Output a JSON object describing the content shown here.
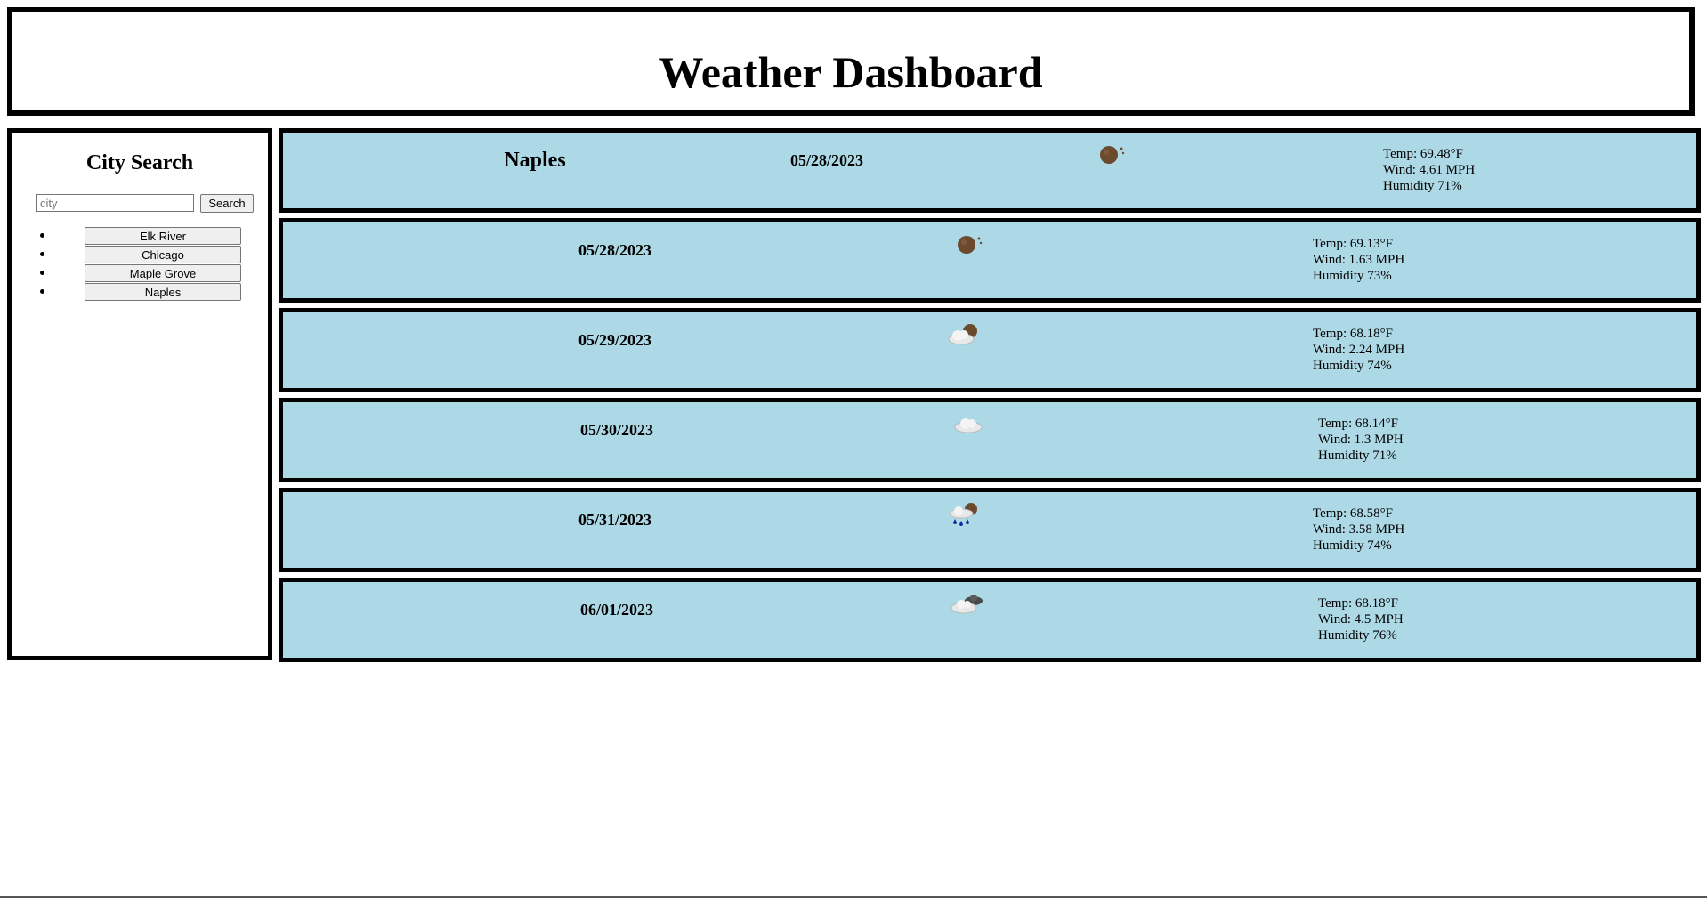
{
  "header": {
    "title": "Weather Dashboard"
  },
  "sidebar": {
    "title": "City Search",
    "search_placeholder": "city",
    "search_button": "Search",
    "history": [
      {
        "label": "Elk River"
      },
      {
        "label": "Chicago"
      },
      {
        "label": "Maple Grove"
      },
      {
        "label": "Naples"
      }
    ]
  },
  "current": {
    "city": "Naples",
    "date": "05/28/2023",
    "icon": "night-clear-icon",
    "temp": "Temp: 69.48°F",
    "wind": "Wind: 4.61 MPH",
    "humidity": "Humidity 71%"
  },
  "forecast": [
    {
      "date": "05/28/2023",
      "icon": "night-clear-icon",
      "temp": "Temp: 69.13°F",
      "wind": "Wind: 1.63 MPH",
      "humidity": "Humidity 73%"
    },
    {
      "date": "05/29/2023",
      "icon": "partly-cloudy-icon",
      "temp": "Temp: 68.18°F",
      "wind": "Wind: 2.24 MPH",
      "humidity": "Humidity 74%"
    },
    {
      "date": "05/30/2023",
      "icon": "cloud-icon",
      "temp": "Temp: 68.14°F",
      "wind": "Wind: 1.3 MPH",
      "humidity": "Humidity 71%"
    },
    {
      "date": "05/31/2023",
      "icon": "rain-icon",
      "temp": "Temp: 68.58°F",
      "wind": "Wind: 3.58 MPH",
      "humidity": "Humidity 74%"
    },
    {
      "date": "06/01/2023",
      "icon": "broken-clouds-icon",
      "temp": "Temp: 68.18°F",
      "wind": "Wind: 4.5 MPH",
      "humidity": "Humidity 76%"
    }
  ],
  "colors": {
    "card_background": "#add8e6",
    "border": "#000000",
    "moon": "#6b4a2e",
    "rain": "#1a2a9e"
  }
}
